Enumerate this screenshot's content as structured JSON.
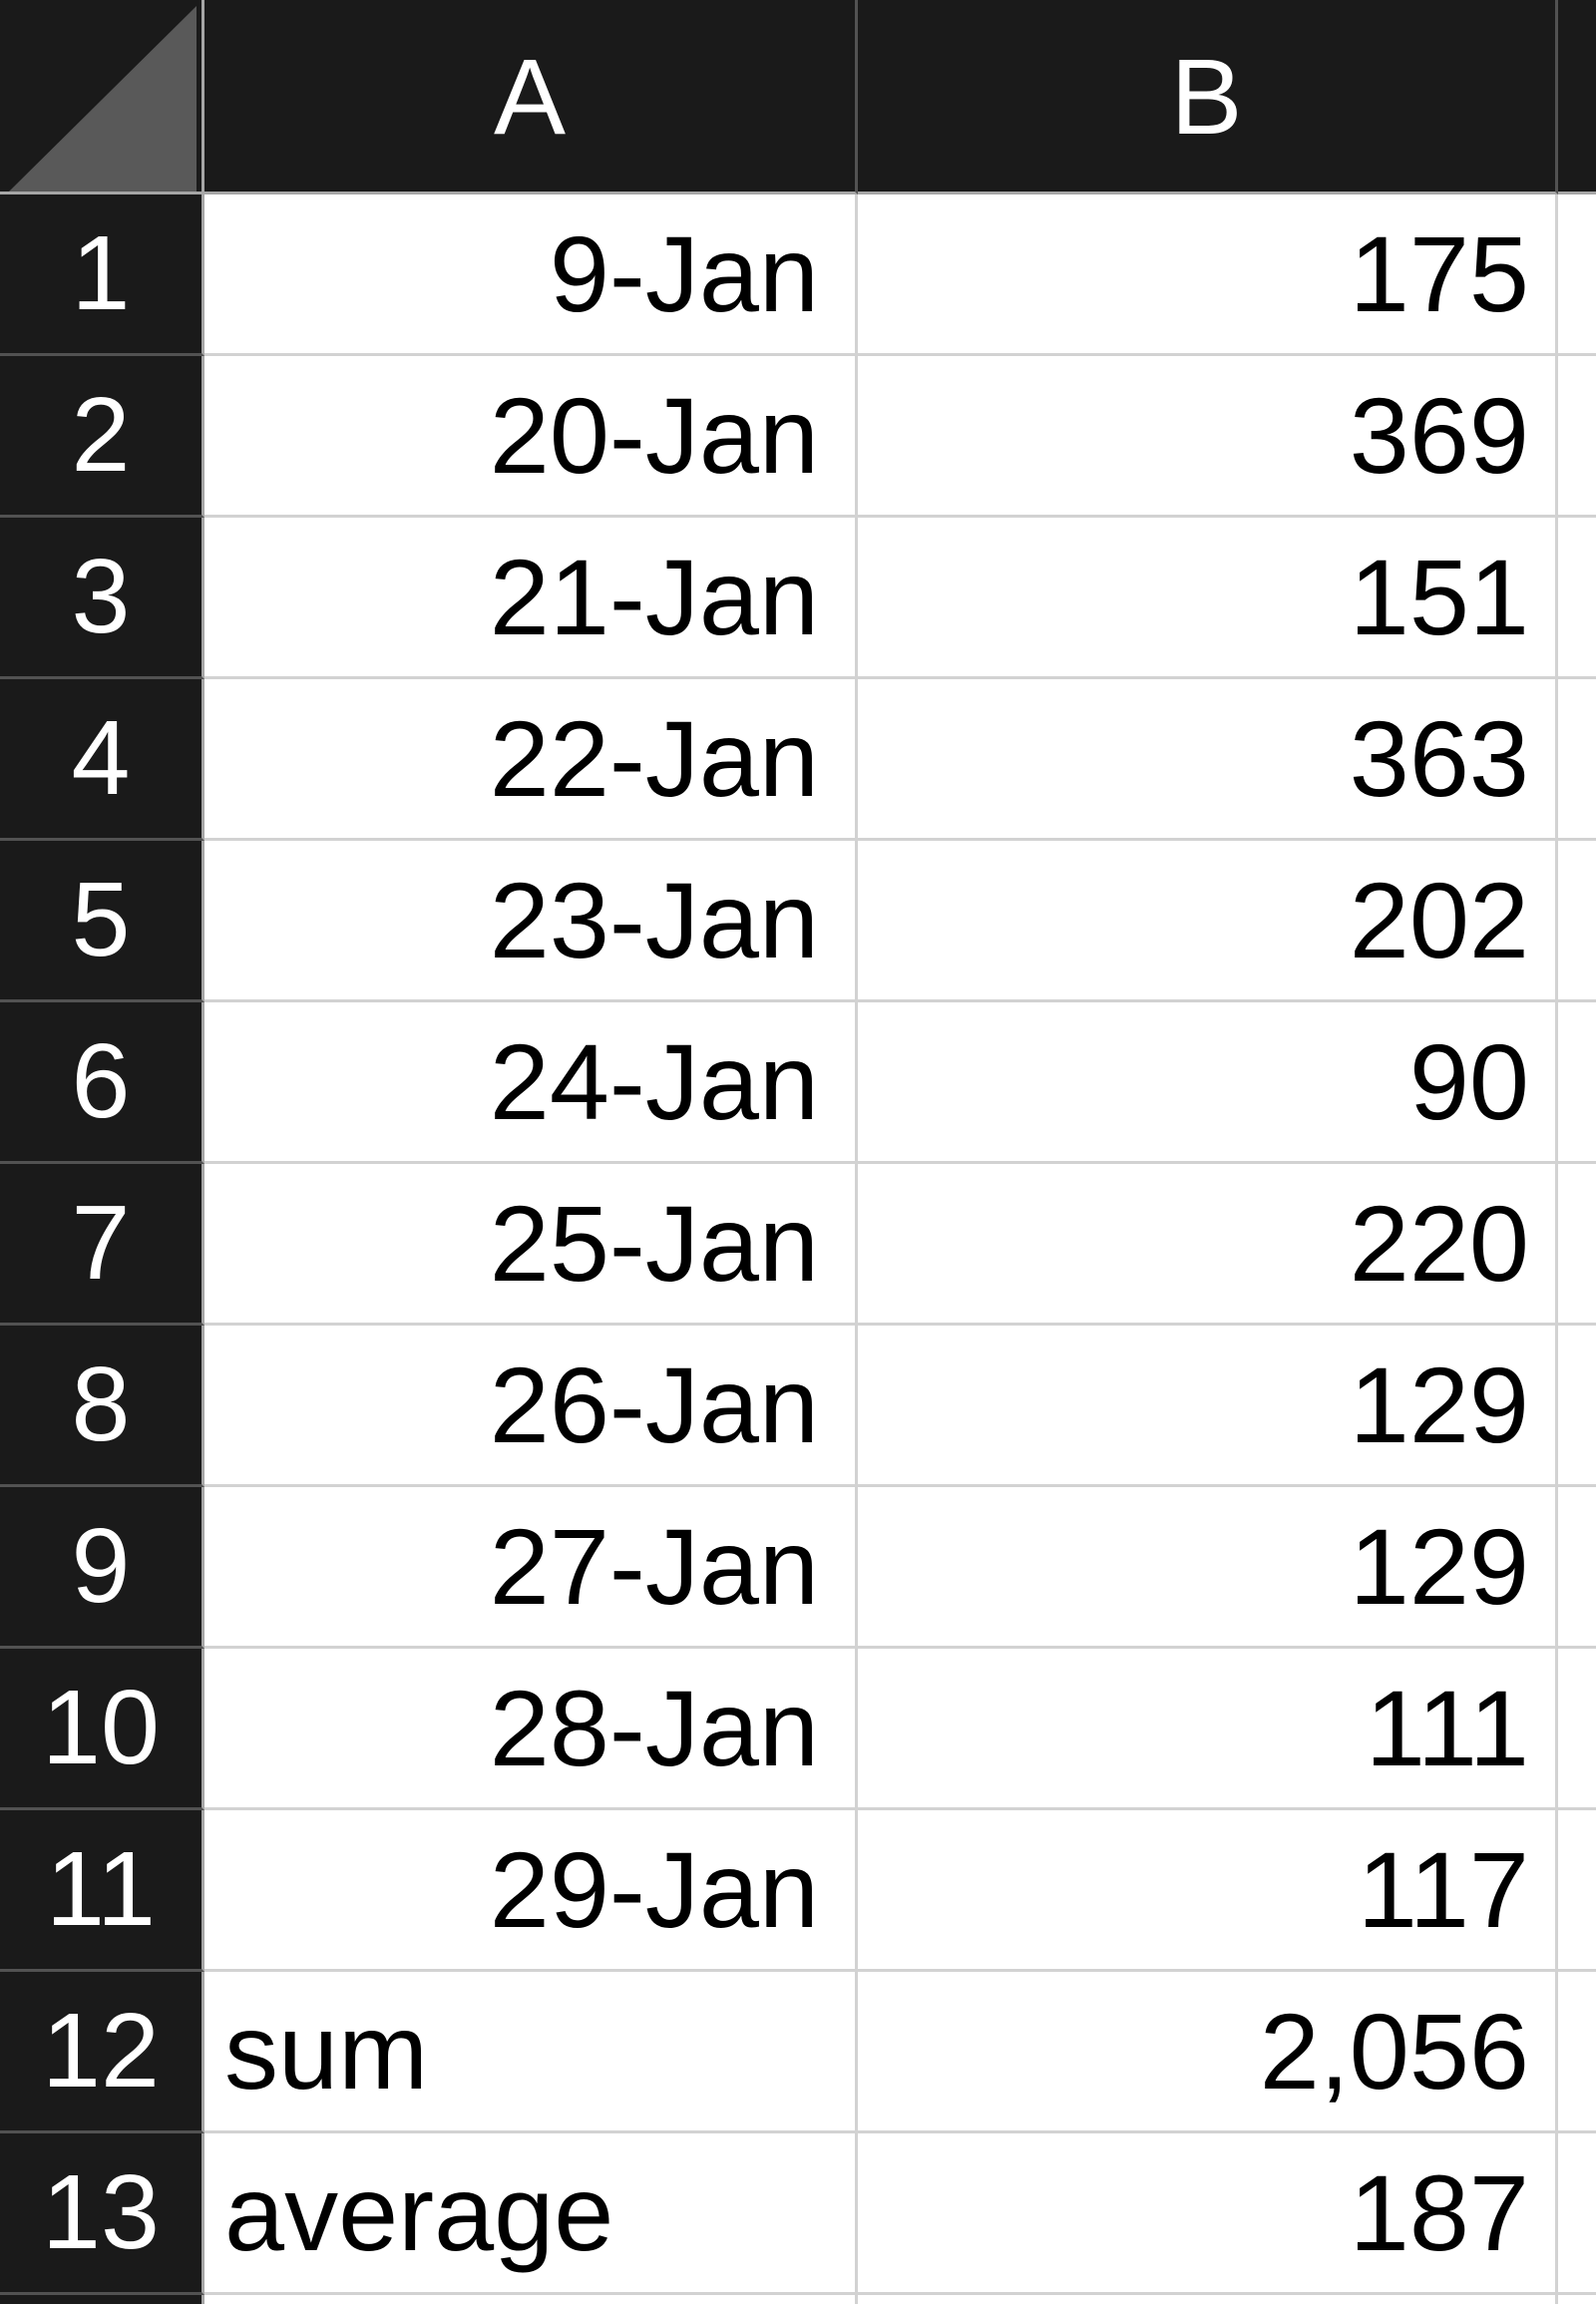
{
  "sheet": {
    "type": "spreadsheet-grid",
    "corner": {
      "icon": "select-all-triangle"
    },
    "columns": [
      {
        "label": "A"
      },
      {
        "label": "B"
      },
      {
        "label": ""
      }
    ],
    "rows": [
      {
        "number": "1",
        "a": "9-Jan",
        "a_align": "right",
        "b": "175"
      },
      {
        "number": "2",
        "a": "20-Jan",
        "a_align": "right",
        "b": "369"
      },
      {
        "number": "3",
        "a": "21-Jan",
        "a_align": "right",
        "b": "151"
      },
      {
        "number": "4",
        "a": "22-Jan",
        "a_align": "right",
        "b": "363"
      },
      {
        "number": "5",
        "a": "23-Jan",
        "a_align": "right",
        "b": "202"
      },
      {
        "number": "6",
        "a": "24-Jan",
        "a_align": "right",
        "b": "90"
      },
      {
        "number": "7",
        "a": "25-Jan",
        "a_align": "right",
        "b": "220"
      },
      {
        "number": "8",
        "a": "26-Jan",
        "a_align": "right",
        "b": "129"
      },
      {
        "number": "9",
        "a": "27-Jan",
        "a_align": "right",
        "b": "129"
      },
      {
        "number": "10",
        "a": "28-Jan",
        "a_align": "right",
        "b": "111"
      },
      {
        "number": "11",
        "a": "29-Jan",
        "a_align": "right",
        "b": "117"
      },
      {
        "number": "12",
        "a": "sum",
        "a_align": "left",
        "b": "2,056"
      },
      {
        "number": "13",
        "a": "average",
        "a_align": "left",
        "b": "187"
      }
    ],
    "colors": {
      "header_bg": "#1a1a1a",
      "cell_bg": "#ffffff",
      "header_text": "#ffffff",
      "cell_text": "#000000",
      "grid_cell": "#d2d2d2",
      "grid_dark": "#525252",
      "grid_boundary": "#a6a6a6",
      "select_all_triangle": "#595959"
    }
  }
}
